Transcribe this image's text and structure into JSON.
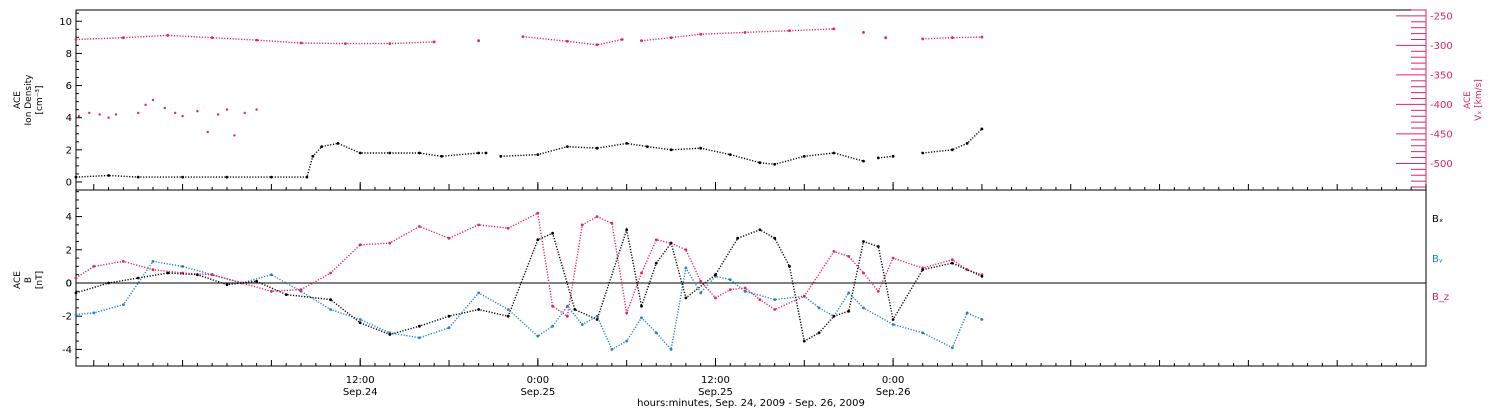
{
  "colors": {
    "black": "#000000",
    "red": "#e0245e",
    "blue": "#1a7fd6"
  },
  "xaxis": {
    "label": "hours:minutes, Sep. 24, 2009 - Sep. 26, 2009",
    "range_hours": [
      -7.2,
      84.0
    ],
    "ticks": [
      {
        "hour": 12,
        "time": "12:00",
        "date": "Sep.24"
      },
      {
        "hour": 24,
        "time": "0:00",
        "date": "Sep.25"
      },
      {
        "hour": 36,
        "time": "12:00",
        "date": "Sep.25"
      },
      {
        "hour": 48,
        "time": "0:00",
        "date": "Sep.26"
      }
    ]
  },
  "chart_data": [
    {
      "type": "scatter",
      "panel": "top",
      "ylabel_left": [
        "ACE",
        "Ion Density",
        "[cm⁻³]"
      ],
      "ylabel_right": [
        "ACE",
        "Vₓ [km/s]"
      ],
      "left_axis": {
        "range": [
          -0.5,
          10.7
        ],
        "ticks": [
          0,
          2,
          4,
          6,
          8,
          10
        ],
        "labels": [
          "0",
          "2",
          "4",
          "6",
          "8",
          "10"
        ]
      },
      "right_axis": {
        "range": [
          -545,
          -240
        ],
        "ticks": [
          -250,
          -300,
          -350,
          -400,
          -450,
          -500
        ],
        "labels": [
          "-250",
          "-300",
          "-350",
          "-400",
          "-450",
          "-500"
        ]
      },
      "series": [
        {
          "name": "Ion Density",
          "axis": "left",
          "color": "black",
          "data_gaps": [
            [
              20.8,
              21.3
            ],
            [
              46.2,
              46.5
            ],
            [
              49.2,
              49.6
            ]
          ],
          "x": [
            -7.2,
            -5,
            -3,
            0,
            3,
            6,
            8.4,
            8.8,
            9.4,
            10.5,
            12,
            14,
            16,
            17.5,
            20,
            20.5,
            21.5,
            24,
            26,
            28,
            30,
            31.4,
            33,
            35,
            37,
            39,
            40,
            42,
            44,
            46,
            47,
            48,
            50,
            52,
            53,
            54
          ],
          "y": [
            0.3,
            0.4,
            0.3,
            0.3,
            0.3,
            0.3,
            0.3,
            1.6,
            2.2,
            2.4,
            1.8,
            1.8,
            1.8,
            1.6,
            1.8,
            1.8,
            1.6,
            1.7,
            2.2,
            2.1,
            2.4,
            2.2,
            2.0,
            2.1,
            1.7,
            1.2,
            1.1,
            1.6,
            1.8,
            1.3,
            1.5,
            1.6,
            1.8,
            2.0,
            2.4,
            3.3
          ]
        },
        {
          "name": "Vx",
          "axis": "right",
          "color": "red",
          "data_gaps": [
            [
              18.5,
              19.0
            ],
            [
              21.1,
              21.6
            ],
            [
              30.0,
              30.2
            ],
            [
              45.8,
              46.2
            ],
            [
              49.3,
              49.7
            ]
          ],
          "x": [
            -7.2,
            -4,
            -1,
            2,
            5,
            8,
            11,
            14,
            17,
            20,
            23,
            26,
            28,
            29.7,
            31,
            33,
            35,
            38,
            41,
            44,
            46,
            47.5,
            50,
            52,
            54
          ],
          "y": [
            -290,
            -287,
            -283,
            -287,
            -291,
            -296,
            -297,
            -297,
            -294,
            -292,
            -285,
            -293,
            -299,
            -290,
            -292,
            -287,
            -281,
            -278,
            -275,
            -272,
            -278,
            -287,
            -289,
            -287,
            -286
          ]
        },
        {
          "name": "Ion Density outliers",
          "axis": "left",
          "color": "red",
          "x": [
            -7.0,
            -6.3,
            -5.6,
            -5.0,
            -4.5,
            -3.0,
            -2.5,
            -2.0,
            -1.2,
            -0.5,
            0.0,
            1.0,
            1.7,
            2.4,
            3.0,
            3.5,
            4.2,
            5.0
          ],
          "y": [
            4.1,
            4.3,
            4.2,
            4.0,
            4.2,
            4.3,
            4.8,
            5.1,
            4.6,
            4.3,
            4.1,
            4.4,
            3.1,
            4.2,
            4.5,
            2.9,
            4.3,
            4.5
          ]
        }
      ]
    },
    {
      "type": "scatter",
      "panel": "bottom",
      "ylabel_left": [
        "ACE",
        "B",
        "[nT]"
      ],
      "axis": {
        "range": [
          -5,
          5.6
        ],
        "ticks": [
          4,
          2,
          0,
          -2,
          -4
        ],
        "labels": [
          "4",
          "2",
          "0",
          "-2",
          "-4"
        ]
      },
      "zero_line": true,
      "series": [
        {
          "name": "Bₓ",
          "color": "black",
          "x": [
            -7.2,
            -5,
            -3,
            -1,
            1,
            3,
            5,
            7,
            10,
            12,
            14,
            16,
            18,
            20,
            22,
            24,
            25,
            26.5,
            28,
            30,
            31,
            32,
            33,
            34,
            36,
            37.5,
            39,
            40,
            41,
            42,
            43,
            44,
            45,
            46,
            47,
            48,
            50,
            52,
            54
          ],
          "y": [
            -0.6,
            0.0,
            0.3,
            0.6,
            0.5,
            -0.1,
            0.1,
            -0.7,
            -1.0,
            -2.4,
            -3.1,
            -2.6,
            -2.0,
            -1.6,
            -2.0,
            2.6,
            3.0,
            -1.6,
            -2.2,
            3.2,
            -1.4,
            1.2,
            2.4,
            -0.9,
            0.5,
            2.7,
            3.2,
            2.7,
            1.0,
            -3.5,
            -3.0,
            -2.0,
            -1.7,
            2.5,
            2.2,
            -2.2,
            0.8,
            1.2,
            0.4
          ]
        },
        {
          "name": "Bᵧ",
          "color": "blue",
          "x": [
            -7.2,
            -6,
            -4,
            -2,
            0,
            2,
            4,
            6,
            8,
            10,
            12,
            14,
            16,
            18,
            20,
            22,
            24,
            25,
            26,
            27,
            28,
            29,
            30,
            31,
            32,
            33,
            34,
            35,
            36,
            37,
            38,
            40,
            42,
            43,
            44,
            45,
            46,
            48,
            50,
            52,
            53,
            54
          ],
          "y": [
            -1.9,
            -1.8,
            -1.3,
            1.3,
            1.0,
            0.5,
            0.0,
            0.5,
            -0.5,
            -1.6,
            -2.2,
            -3.0,
            -3.3,
            -2.7,
            -0.6,
            -1.6,
            -3.2,
            -2.6,
            -1.4,
            -2.5,
            -2.0,
            -4.0,
            -3.5,
            -2.1,
            -3.0,
            -4.0,
            0.9,
            -0.6,
            0.4,
            0.2,
            -0.5,
            -1.0,
            -0.8,
            -1.5,
            -2.0,
            -0.6,
            -1.5,
            -2.5,
            -3.0,
            -3.9,
            -1.8,
            -2.2
          ]
        },
        {
          "name": "B_z",
          "color": "red",
          "x": [
            -7.2,
            -6,
            -4,
            -2,
            0,
            2,
            4,
            6,
            8,
            10,
            12,
            14,
            16,
            18,
            20,
            22,
            24,
            25,
            26,
            27,
            28,
            29,
            30,
            31,
            32,
            33,
            34,
            35,
            36,
            37,
            38,
            39,
            40,
            42,
            44,
            45,
            46,
            47,
            48,
            50,
            52,
            53,
            54
          ],
          "y": [
            0.3,
            1.0,
            1.3,
            0.8,
            0.6,
            0.5,
            0.0,
            -0.5,
            -0.4,
            0.6,
            2.3,
            2.4,
            3.4,
            2.7,
            3.5,
            3.3,
            4.2,
            -1.4,
            -2.0,
            3.5,
            4.0,
            3.6,
            -1.8,
            0.6,
            2.6,
            2.4,
            2.0,
            0.1,
            -0.9,
            -0.4,
            -0.3,
            -1.0,
            -1.6,
            -0.8,
            1.9,
            1.6,
            0.6,
            -0.5,
            1.5,
            0.9,
            1.4,
            0.8,
            0.5
          ]
        }
      ]
    }
  ]
}
